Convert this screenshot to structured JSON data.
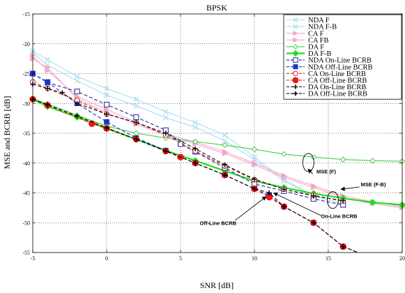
{
  "chart_data": {
    "type": "line",
    "title": "BPSK",
    "xlabel": "SNR [dB]",
    "ylabel": "MSE and BCRB [dB]",
    "xlim": [
      -5,
      20
    ],
    "ylim": [
      -55,
      -15
    ],
    "xticks": [
      -5,
      0,
      5,
      10,
      15,
      20
    ],
    "yticks": [
      -55,
      -50,
      -45,
      -40,
      -35,
      -30,
      -25,
      -20,
      -15
    ],
    "grid": true,
    "legend_position": "top-right",
    "series": [
      {
        "name": "NDA F",
        "color": "#aaddf2",
        "marker": "x",
        "dash": "solid",
        "x": [
          -5,
          -4,
          -2,
          0,
          2,
          4,
          6,
          8,
          10,
          12,
          14,
          16
        ],
        "y": [
          -21.5,
          -23.6,
          -26.2,
          -28.6,
          -30.4,
          -32.4,
          -34.0,
          -36.3,
          -39.4,
          -43.0,
          -45.5,
          -46.8
        ]
      },
      {
        "name": "NDA F-B",
        "color": "#aaddf2",
        "marker": "x",
        "dash": "solid",
        "x": [
          -5,
          -4,
          -2,
          0,
          2,
          4,
          6,
          8,
          10,
          12,
          14,
          16
        ],
        "y": [
          -21.2,
          -22.7,
          -25.5,
          -27.5,
          -29.3,
          -31.4,
          -33.2,
          -35.3,
          -39.0,
          -42.7,
          -45.5,
          -46.8
        ]
      },
      {
        "name": "CA F",
        "color": "#f4a6c8",
        "marker": "triangle-right",
        "dash": "solid",
        "x": [
          -5,
          -4,
          -2,
          0,
          2,
          4,
          6,
          8,
          10,
          12,
          14,
          16,
          18,
          20
        ],
        "y": [
          -22.0,
          -24.5,
          -28.8,
          -31.0,
          -33.2,
          -35.1,
          -36.5,
          -38.1,
          -40.0,
          -42.1,
          -43.8,
          -45.5,
          -46.5,
          -47.3
        ]
      },
      {
        "name": "CA FB",
        "color": "#f4a6c8",
        "marker": "triangle-right",
        "dash": "solid",
        "x": [
          -5,
          -4,
          -2,
          0,
          2,
          4,
          6,
          8,
          10,
          12,
          14,
          16,
          18,
          20
        ],
        "y": [
          -22.5,
          -24.0,
          -29.2,
          -31.5,
          -33.5,
          -35.3,
          -36.8,
          -38.4,
          -40.3,
          -42.4,
          -44.1,
          -45.8,
          -46.8,
          -47.5
        ]
      },
      {
        "name": "DA F",
        "color": "#44cc44",
        "marker": "diamond-open",
        "dash": "solid",
        "x": [
          -5,
          -4,
          -2,
          0,
          2,
          4,
          6,
          8,
          10,
          12,
          14,
          16,
          18,
          20
        ],
        "y": [
          -29.2,
          -30.1,
          -32.0,
          -33.8,
          -35.0,
          -35.8,
          -36.4,
          -37.0,
          -37.7,
          -38.5,
          -39.0,
          -39.4,
          -39.6,
          -39.7
        ]
      },
      {
        "name": "DA F-B",
        "color": "#22dd22",
        "marker": "diamond-filled",
        "dash": "solid",
        "x": [
          -5,
          -4,
          -2,
          0,
          2,
          4,
          6,
          8,
          10,
          12,
          14,
          16,
          18,
          20
        ],
        "y": [
          -29.3,
          -30.5,
          -32.3,
          -34.2,
          -36.0,
          -37.9,
          -39.6,
          -41.3,
          -43.0,
          -44.1,
          -45.1,
          -45.9,
          -46.6,
          -47.0
        ]
      },
      {
        "name": "NDA On-Line BCRB",
        "color": "#1a2a99",
        "marker": "square-open",
        "dash": "dashed",
        "x": [
          -5,
          -4,
          -2,
          0,
          2,
          4,
          5,
          6,
          8,
          10,
          12,
          14,
          16
        ],
        "y": [
          -25.0,
          -26.5,
          -28.0,
          -30.2,
          -32.3,
          -34.5,
          -36.8,
          -38.1,
          -40.8,
          -43.5,
          -44.7,
          -46.0,
          -47.0
        ]
      },
      {
        "name": "NDA Off-Line BCRB",
        "color": "#1a33cc",
        "marker": "square-filled",
        "dash": "dashed",
        "x": [
          -5,
          -4,
          -2,
          0,
          2,
          4,
          6,
          8,
          10,
          11,
          12,
          14,
          16,
          17
        ],
        "y": [
          -25.0,
          -26.4,
          -30.0,
          -33.1,
          -35.8,
          -37.9,
          -40.0,
          -42.0,
          -44.3,
          -45.5,
          -47.3,
          -50.0,
          -54.0,
          -55.0
        ]
      },
      {
        "name": "CA On-Line BCRB",
        "color": "#cc2222",
        "marker": "circle-open",
        "dash": "dashed",
        "x": [
          -5,
          -4,
          -2,
          0,
          2,
          4,
          6,
          8,
          10,
          12,
          14,
          16
        ],
        "y": [
          -26.4,
          -27.5,
          -29.5,
          -31.8,
          -33.2,
          -35.3,
          -38.0,
          -40.5,
          -42.8,
          -44.4,
          -45.4,
          -46.4
        ]
      },
      {
        "name": "CA Off-Line BCRB",
        "color": "#ff1111",
        "marker": "circle-filled",
        "dash": "dashed",
        "x": [
          -5,
          -4,
          -1,
          0,
          2,
          4,
          5,
          6,
          8,
          10,
          11,
          12,
          14,
          16,
          17
        ],
        "y": [
          -29.3,
          -30.3,
          -33.4,
          -34.2,
          -36.0,
          -38.0,
          -39.0,
          -40.0,
          -42.0,
          -44.3,
          -45.7,
          -47.3,
          -50.0,
          -54.0,
          -55.0
        ]
      },
      {
        "name": "DA On-Line BCRB",
        "color": "#111111",
        "marker": "plus",
        "dash": "dashed",
        "x": [
          -5,
          -4,
          -3,
          -2,
          0,
          2,
          4,
          6,
          8,
          10,
          12,
          14,
          16
        ],
        "y": [
          -26.8,
          -27.5,
          -28.2,
          -30.0,
          -31.8,
          -33.2,
          -35.0,
          -37.6,
          -40.3,
          -42.7,
          -44.4,
          -45.5,
          -46.3
        ]
      },
      {
        "name": "DA Off-Line BCRB",
        "color": "#000000",
        "marker": "plus",
        "dash": "dashed",
        "x": [
          -5,
          -4,
          -2,
          0,
          2,
          4,
          6,
          8,
          10,
          11,
          12,
          14,
          16,
          17
        ],
        "y": [
          -29.3,
          -30.2,
          -32.1,
          -34.1,
          -36.0,
          -38.0,
          -40.0,
          -42.0,
          -44.3,
          -45.0,
          -47.3,
          -50.0,
          -54.0,
          -55.0
        ]
      }
    ],
    "annotations": [
      {
        "text": "MSE (F)",
        "x": 14.2,
        "y": -41.7
      },
      {
        "text": "MSE (F-B)",
        "x": 17.2,
        "y": -43.9
      },
      {
        "text": "On-Line BCRB",
        "x": 14.5,
        "y": -49.2
      },
      {
        "text": "Off-Line BCRB",
        "x": 6.3,
        "y": -50.4
      }
    ]
  }
}
